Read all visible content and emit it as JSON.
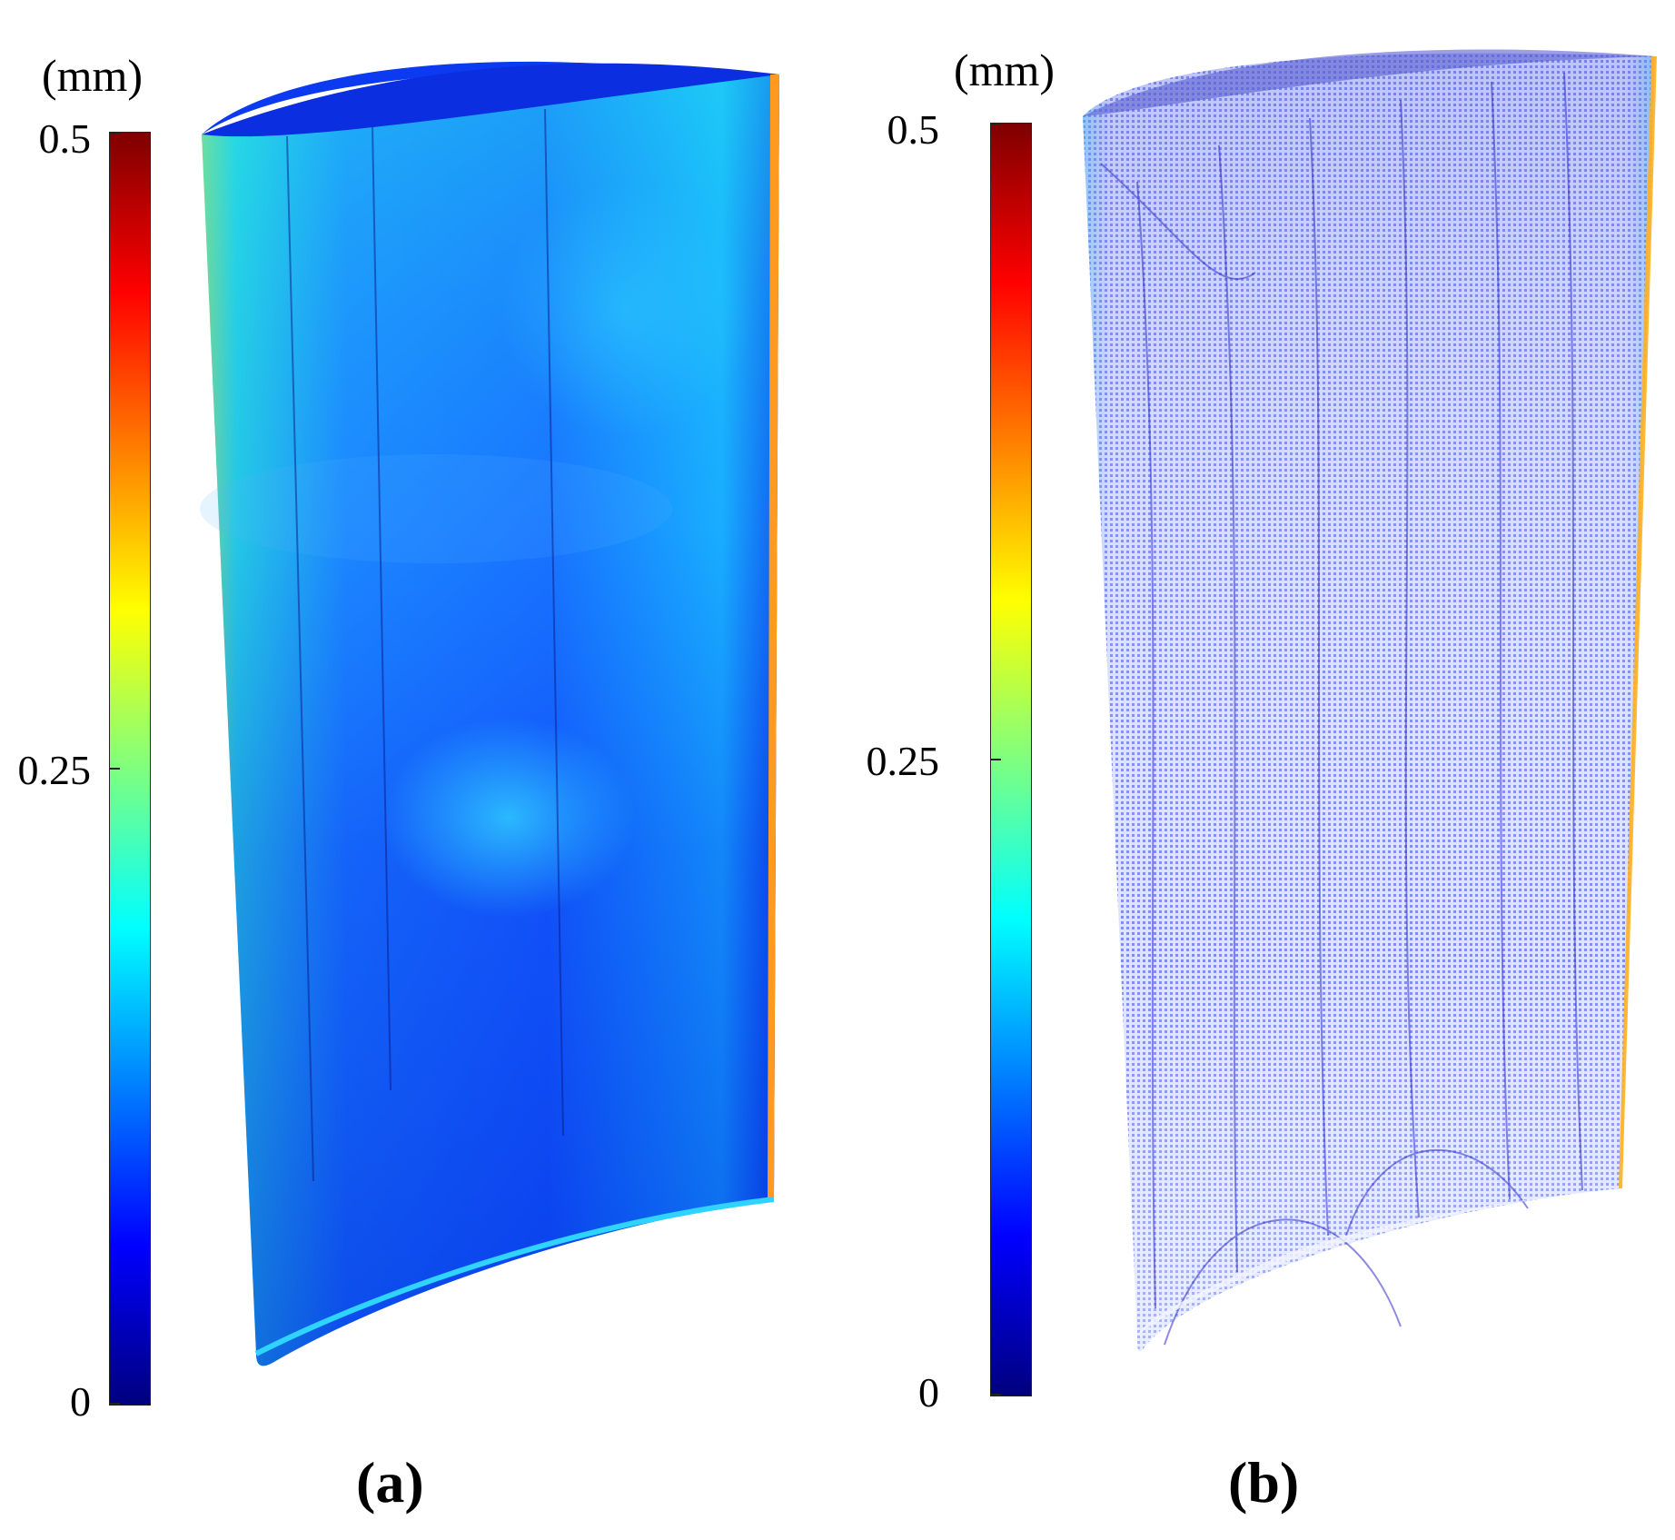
{
  "panels": [
    {
      "id": "a",
      "caption": "(a)",
      "colorbar": {
        "unit": "(mm)",
        "ticks": [
          "0.5",
          "0.25",
          "0"
        ],
        "colormap": [
          "#00007f",
          "#0000ff",
          "#007fff",
          "#00ffff",
          "#7fff7f",
          "#ffff00",
          "#ff7f00",
          "#ff0000",
          "#7f0000"
        ]
      }
    },
    {
      "id": "b",
      "caption": "(b)",
      "colorbar": {
        "unit": "(mm)",
        "ticks": [
          "0.5",
          "0.25",
          "0"
        ],
        "colormap": [
          "#00007f",
          "#0000ff",
          "#007fff",
          "#00ffff",
          "#7fff7f",
          "#ffff00",
          "#ff7f00",
          "#ff0000",
          "#7f0000"
        ]
      }
    }
  ],
  "colors": {
    "blade_a_main": "#1a55ff",
    "blade_a_edge": "#b8f04a",
    "blade_b_main": "#8a9df2",
    "blade_b_line": "#3b2fc9"
  }
}
